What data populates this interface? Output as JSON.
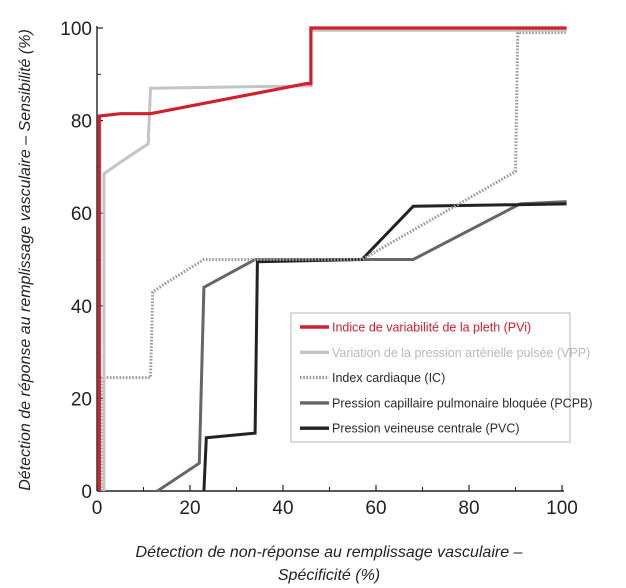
{
  "chart_data": {
    "type": "line",
    "title": "",
    "xlabel_lines": [
      "Détection de non-réponse au remplissage vasculaire –",
      "Spécificité (%)"
    ],
    "ylabel": "Détection de réponse au remplissage vasculaire – Sensibilité (%)",
    "xlim": [
      0,
      100
    ],
    "ylim": [
      0,
      100
    ],
    "x_ticks": [
      0,
      20,
      40,
      60,
      80,
      100
    ],
    "y_ticks": [
      0,
      20,
      40,
      60,
      80,
      100
    ],
    "legend_position": "center-right",
    "series": [
      {
        "name": "Indice de variabilité de la pleth (PVi)",
        "color": "#d0202e",
        "style": "solid",
        "points": [
          [
            0.5,
            0
          ],
          [
            0.5,
            81
          ],
          [
            5,
            81.5
          ],
          [
            11.5,
            81.5
          ],
          [
            45,
            88
          ],
          [
            46,
            88
          ],
          [
            46,
            100
          ],
          [
            101,
            100
          ]
        ]
      },
      {
        "name": "Variation de la pression artérielle pulsée (VPP)",
        "color": "#c4c4c4",
        "style": "solid",
        "points": [
          [
            1.5,
            0
          ],
          [
            1.5,
            68.5
          ],
          [
            5,
            71
          ],
          [
            11,
            75
          ],
          [
            11.5,
            87
          ],
          [
            45,
            87.5
          ],
          [
            46,
            87.5
          ],
          [
            46,
            99.5
          ],
          [
            91,
            99.5
          ],
          [
            101,
            99.5
          ]
        ]
      },
      {
        "name": "Index cardiaque (IC)",
        "color": "#9a9a9a",
        "style": "dotted",
        "points": [
          [
            1,
            0
          ],
          [
            1,
            24.5
          ],
          [
            11.5,
            24.5
          ],
          [
            12,
            43
          ],
          [
            15,
            45
          ],
          [
            23,
            50
          ],
          [
            33,
            50
          ],
          [
            57,
            50
          ],
          [
            90,
            69
          ],
          [
            90.5,
            99
          ],
          [
            101,
            99
          ]
        ]
      },
      {
        "name": "Pression capillaire pulmonaire bloquée (PCPB)",
        "color": "#666666",
        "style": "solid",
        "points": [
          [
            13,
            0
          ],
          [
            22,
            6
          ],
          [
            23,
            44
          ],
          [
            34,
            50
          ],
          [
            57,
            50
          ],
          [
            68,
            50
          ],
          [
            91,
            62
          ],
          [
            101,
            62.5
          ]
        ]
      },
      {
        "name": "Pression veineuse centrale (PVC)",
        "color": "#1f2326",
        "style": "solid",
        "points": [
          [
            23,
            0
          ],
          [
            23.5,
            11.5
          ],
          [
            34,
            12.5
          ],
          [
            34.5,
            49.5
          ],
          [
            57,
            50
          ],
          [
            68,
            61.5
          ],
          [
            101,
            62
          ]
        ]
      }
    ]
  }
}
